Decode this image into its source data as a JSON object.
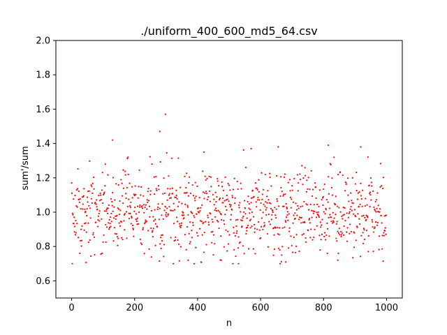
{
  "chart_data": {
    "type": "scatter",
    "title": "./uniform_400_600_md5_64.csv",
    "xlabel": "n",
    "ylabel": "sum'/sum",
    "xlim": [
      -50,
      1050
    ],
    "ylim": [
      0.5,
      2.0
    ],
    "xticks": [
      0,
      200,
      400,
      600,
      800,
      1000
    ],
    "yticks": [
      0.6,
      0.8,
      1.0,
      1.2,
      1.4,
      1.6,
      1.8,
      2.0
    ],
    "xtick_labels": [
      "0",
      "200",
      "400",
      "600",
      "800",
      "1000"
    ],
    "ytick_labels": [
      "0.6",
      "0.8",
      "1.0",
      "1.2",
      "1.4",
      "1.6",
      "1.8",
      "2.0"
    ],
    "grid": false,
    "marker_color": "#ff0000",
    "point_count": 1000,
    "notable_points": [
      {
        "x": 130,
        "y": 1.42
      },
      {
        "x": 280,
        "y": 1.47
      },
      {
        "x": 298,
        "y": 1.57
      },
      {
        "x": 420,
        "y": 1.35
      },
      {
        "x": 570,
        "y": 1.37
      },
      {
        "x": 815,
        "y": 1.39
      },
      {
        "x": 918,
        "y": 1.38
      },
      {
        "x": 370,
        "y": 0.72
      },
      {
        "x": 475,
        "y": 0.72
      },
      {
        "x": 530,
        "y": 0.7
      },
      {
        "x": 680,
        "y": 0.71
      },
      {
        "x": 845,
        "y": 0.72
      }
    ],
    "distribution": {
      "center": 1.0,
      "spread_sd": 0.12,
      "clip_min": 0.7,
      "clip_max": 1.38,
      "seed": 64
    }
  }
}
